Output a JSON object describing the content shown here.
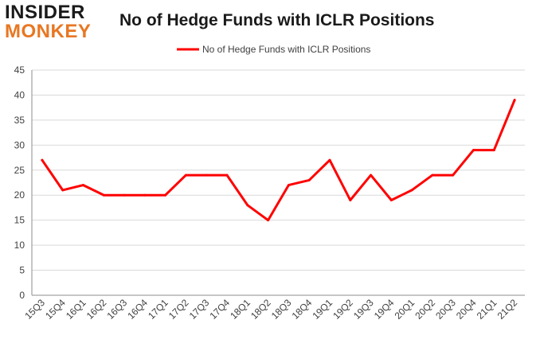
{
  "logo": {
    "line1": "INSIDER",
    "line2": "MONKEY"
  },
  "colors": {
    "series": "#ff0000",
    "grid": "#d9d9d9",
    "axis": "#8c8c8c",
    "logo_dark": "#1a1a1a",
    "logo_accent": "#e87722"
  },
  "chart_data": {
    "type": "line",
    "title": "No of Hedge Funds with ICLR Positions",
    "xlabel": "",
    "ylabel": "",
    "legend_position": "top-center",
    "grid": true,
    "ylim": [
      0,
      45
    ],
    "yticks": [
      0,
      5,
      10,
      15,
      20,
      25,
      30,
      35,
      40,
      45
    ],
    "categories": [
      "15Q3",
      "15Q4",
      "16Q1",
      "16Q2",
      "16Q3",
      "16Q4",
      "17Q1",
      "17Q2",
      "17Q3",
      "17Q4",
      "18Q1",
      "18Q2",
      "18Q3",
      "18Q4",
      "19Q1",
      "19Q2",
      "19Q3",
      "19Q4",
      "20Q1",
      "20Q2",
      "20Q3",
      "20Q4",
      "21Q1",
      "21Q2"
    ],
    "series": [
      {
        "name": "No of Hedge Funds with ICLR Positions",
        "values": [
          27,
          21,
          22,
          20,
          20,
          20,
          20,
          24,
          24,
          24,
          18,
          15,
          22,
          23,
          27,
          19,
          24,
          19,
          21,
          24,
          24,
          29,
          29,
          39
        ]
      }
    ]
  }
}
